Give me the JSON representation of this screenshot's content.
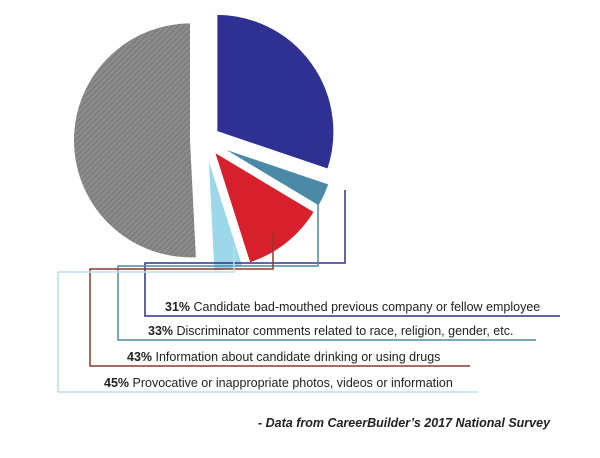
{
  "chart_data": {
    "type": "pie",
    "title": "",
    "categories": [
      "Candidate bad-mouthed previous company or fellow employee",
      "Discriminator comments related to race, religion, gender, etc.",
      "Information about candidate drinking or using drugs",
      "Provocative or inappropriate photos, videos or information"
    ],
    "values": [
      31,
      33,
      43,
      45
    ],
    "value_labels": [
      "31%",
      "33%",
      "43%",
      "45%"
    ],
    "slice_shares": [
      0.302,
      0.034,
      0.115,
      0.041,
      0.508
    ],
    "colors": {
      "bad_mouthed": "#2e3192",
      "discriminator": "#4a8aa6",
      "drinking": "#d81f2c",
      "photos": "#9dd8ea",
      "remainder": "#8a8a8a",
      "leader_bad_mouthed": "#2e3192",
      "leader_discriminator": "#4a8aa6",
      "leader_drinking": "#8b3a2a",
      "leader_photos": "#b9dff0"
    }
  },
  "source_note": "- Data from CareerBuilder’s 2017 National Survey"
}
